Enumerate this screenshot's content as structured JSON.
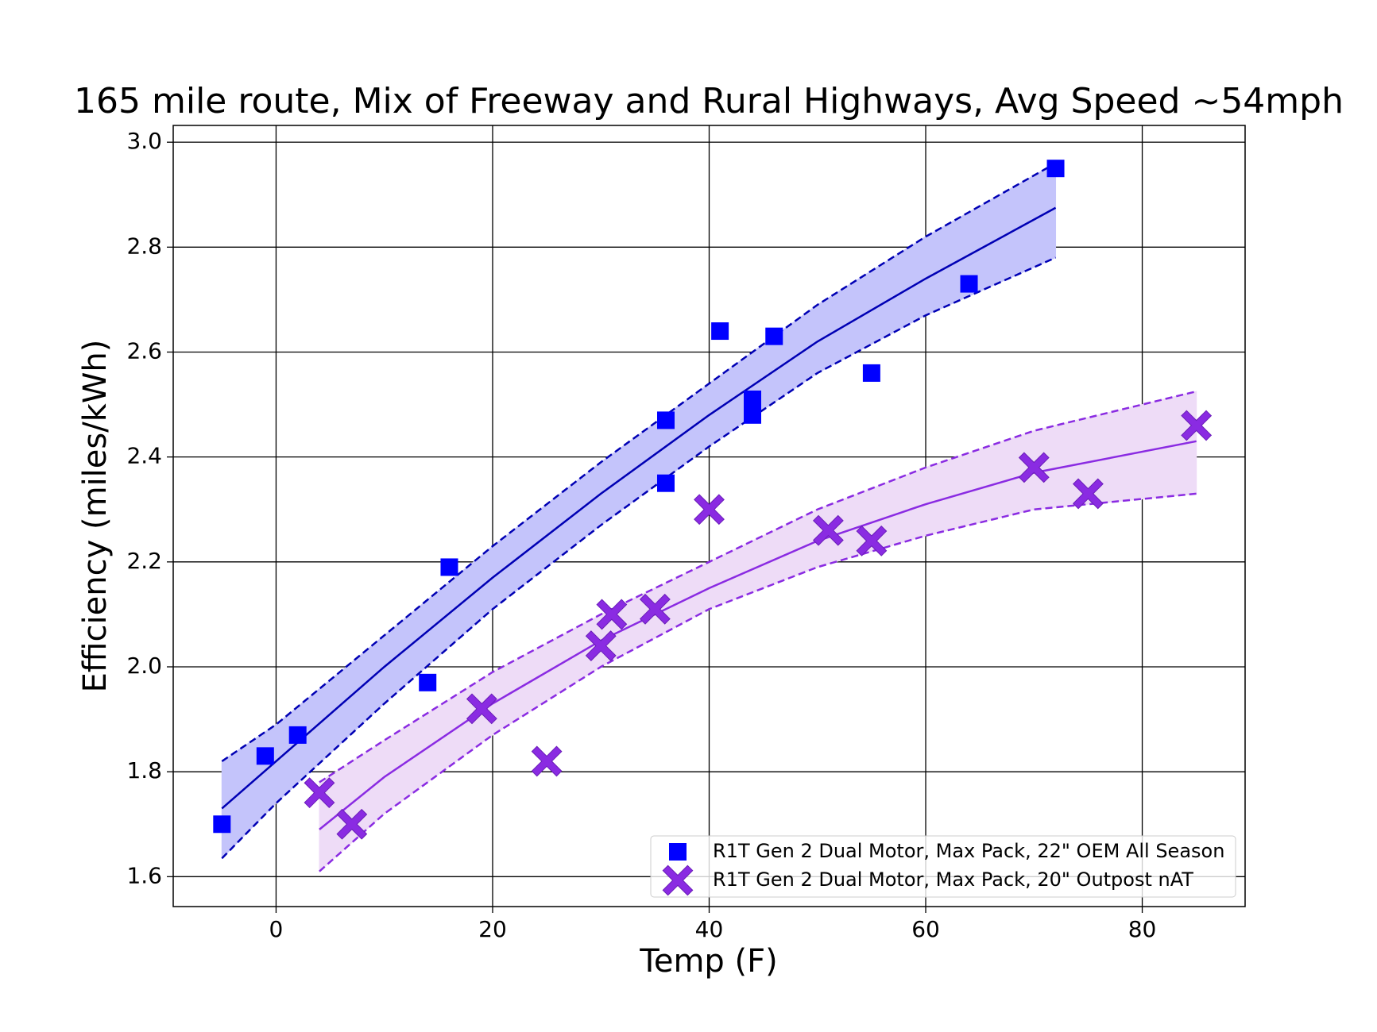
{
  "chart_data": {
    "type": "scatter",
    "title": "165 mile route, Mix of Freeway and Rural Highways, Avg Speed ~54mph",
    "xlabel": "Temp (F)",
    "ylabel": "Efficiency (miles/kWh)",
    "xlim": [
      -9.5,
      89.5
    ],
    "ylim": [
      1.543,
      3.032
    ],
    "xticks": [
      0,
      20,
      40,
      60,
      80
    ],
    "yticks": [
      1.6,
      1.8,
      {
        "value": 2,
        "label": "2.0"
      },
      2.2,
      2.4,
      2.6,
      2.8,
      {
        "value": 3,
        "label": "3.0"
      }
    ],
    "grid": true,
    "legend": "lower right",
    "series": [
      {
        "name": "R1T Gen 2 Dual Motor, Max Pack, 22\" OEM All Season",
        "marker": "square",
        "color": "#0000ff",
        "fit_color": "#0000b4",
        "band_color": "#c4c4fb",
        "x": [
          -5,
          -1,
          2,
          14,
          16,
          36,
          36,
          41,
          44,
          44,
          46,
          55,
          64,
          72
        ],
        "values": [
          1.7,
          1.83,
          1.87,
          1.97,
          2.19,
          2.47,
          2.35,
          2.64,
          2.51,
          2.48,
          2.63,
          2.56,
          2.73,
          2.95
        ],
        "fit": {
          "x": [
            -5,
            0,
            10,
            20,
            30,
            40,
            50,
            60,
            72
          ],
          "values": [
            1.73,
            1.82,
            2.0,
            2.17,
            2.33,
            2.48,
            2.62,
            2.74,
            2.875
          ],
          "upper": [
            1.82,
            1.89,
            2.06,
            2.23,
            2.39,
            2.54,
            2.69,
            2.82,
            2.96
          ],
          "lower": [
            1.635,
            1.74,
            1.93,
            2.11,
            2.27,
            2.42,
            2.56,
            2.67,
            2.78
          ]
        }
      },
      {
        "name": "R1T Gen 2 Dual Motor, Max Pack, 20\" Outpost nAT",
        "marker": "x",
        "color": "#8a2be2",
        "fit_color": "#8a2be2",
        "band_color": "#eedcf7",
        "x": [
          4,
          7,
          19,
          25,
          30,
          31,
          35,
          40,
          51,
          55,
          70,
          75,
          85
        ],
        "values": [
          1.76,
          1.7,
          1.92,
          1.82,
          2.04,
          2.1,
          2.11,
          2.3,
          2.26,
          2.24,
          2.38,
          2.33,
          2.46
        ],
        "fit": {
          "x": [
            4,
            10,
            20,
            30,
            40,
            50,
            60,
            70,
            85
          ],
          "values": [
            1.69,
            1.79,
            1.93,
            2.05,
            2.15,
            2.24,
            2.31,
            2.37,
            2.43
          ],
          "upper": [
            1.78,
            1.86,
            1.99,
            2.1,
            2.2,
            2.3,
            2.38,
            2.45,
            2.525
          ],
          "lower": [
            1.61,
            1.72,
            1.87,
            2.0,
            2.11,
            2.19,
            2.25,
            2.3,
            2.33
          ]
        }
      }
    ]
  }
}
